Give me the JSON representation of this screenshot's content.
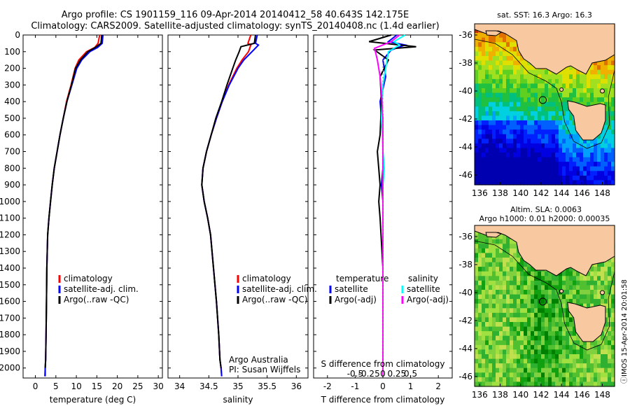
{
  "header": {
    "line1": "Argo profile: CS 1901159_116 09-Apr-2014 20140412_58 40.643S 142.175E",
    "line2": "Climatology: CARS2009. Satellite-adjusted climatology: synTS_20140408.nc (1.4d earlier)"
  },
  "chart_data": [
    {
      "type": "line",
      "xlabel": "temperature (deg C)",
      "xlim": [
        -3,
        31
      ],
      "xticks": [
        0,
        5,
        10,
        15,
        20,
        25,
        30
      ],
      "ylim": [
        2060,
        0
      ],
      "yticks": [
        0,
        100,
        200,
        300,
        400,
        500,
        600,
        700,
        800,
        900,
        1000,
        1100,
        1200,
        1300,
        1400,
        1500,
        1600,
        1700,
        1800,
        1900,
        2000
      ],
      "legend": [
        "climatology",
        "satellite-adj. clim.",
        "Argo(..raw -QC)"
      ],
      "series": [
        {
          "name": "climatology",
          "color": "#ff0000",
          "x": [
            15.7,
            15.3,
            14.5,
            12.5,
            10.6,
            9.7,
            8.7,
            7.6,
            6.8,
            6.0,
            5.3,
            4.6,
            4.1,
            3.7,
            3.3,
            3.0,
            2.8,
            2.7,
            2.6,
            2.5,
            2.4,
            2.3
          ],
          "y": [
            0,
            50,
            75,
            100,
            150,
            200,
            300,
            400,
            500,
            600,
            700,
            800,
            900,
            1000,
            1100,
            1200,
            1400,
            1600,
            1800,
            1950,
            2000,
            2050
          ]
        },
        {
          "name": "satellite-adj. clim.",
          "color": "#0000ff",
          "x": [
            16.5,
            16.3,
            15.2,
            13.3,
            11.3,
            10.1,
            8.9,
            7.7,
            6.8,
            6.0,
            5.3,
            4.6,
            4.1,
            3.7,
            3.3,
            3.0,
            2.8,
            2.7,
            2.6,
            2.5,
            2.4,
            2.4
          ],
          "y": [
            0,
            50,
            75,
            100,
            150,
            200,
            300,
            400,
            500,
            600,
            700,
            800,
            900,
            1000,
            1100,
            1200,
            1400,
            1600,
            1800,
            1950,
            2000,
            2050
          ]
        },
        {
          "name": "Argo(..raw -QC)",
          "color": "#000000",
          "x": [
            16.2,
            16.0,
            14.6,
            12.8,
            11.0,
            9.8,
            8.8,
            7.7,
            6.8,
            6.0,
            5.3,
            4.6,
            4.1,
            3.7,
            3.3,
            3.0,
            2.8,
            2.7,
            2.6,
            2.5,
            2.4
          ],
          "y": [
            0,
            50,
            75,
            100,
            150,
            200,
            300,
            400,
            500,
            600,
            700,
            800,
            900,
            1000,
            1100,
            1200,
            1400,
            1600,
            1800,
            1950,
            2000
          ]
        }
      ]
    },
    {
      "type": "line",
      "xlabel": "salinity",
      "xlim": [
        33.8,
        36.2
      ],
      "xticks": [
        34,
        34.5,
        35,
        35.5,
        36
      ],
      "ylim": [
        2060,
        0
      ],
      "legend": [
        "climatology",
        "satellite-adj. clim.",
        "Argo(..raw -QC)"
      ],
      "annotation": [
        "Argo Australia",
        "PI: Susan Wijffels"
      ],
      "series": [
        {
          "name": "climatology",
          "color": "#ff0000",
          "x": [
            35.22,
            35.17,
            35.22,
            35.18,
            35.07,
            34.98,
            34.84,
            34.73,
            34.63,
            34.54,
            34.46,
            34.4,
            34.38,
            34.42,
            34.48,
            34.53,
            34.58,
            34.63,
            34.67,
            34.69,
            34.71,
            34.72
          ],
          "y": [
            0,
            50,
            60,
            100,
            150,
            200,
            300,
            400,
            500,
            600,
            700,
            800,
            900,
            1000,
            1100,
            1200,
            1400,
            1600,
            1800,
            1950,
            2000,
            2050
          ]
        },
        {
          "name": "satellite-adj. clim.",
          "color": "#0000ff",
          "x": [
            35.33,
            35.3,
            35.35,
            35.24,
            35.1,
            35.0,
            34.85,
            34.73,
            34.63,
            34.54,
            34.46,
            34.4,
            34.38,
            34.42,
            34.48,
            34.53,
            34.58,
            34.63,
            34.67,
            34.69,
            34.71,
            34.72
          ],
          "y": [
            0,
            50,
            60,
            100,
            150,
            200,
            300,
            400,
            500,
            600,
            700,
            800,
            900,
            1000,
            1100,
            1200,
            1400,
            1600,
            1800,
            1950,
            2000,
            2050
          ]
        },
        {
          "name": "Argo(..raw -QC)",
          "color": "#000000",
          "x": [
            35.3,
            35.28,
            35.05,
            35.02,
            34.96,
            34.91,
            34.81,
            34.72,
            34.62,
            34.54,
            34.46,
            34.4,
            34.38,
            34.42,
            34.48,
            34.53,
            34.58,
            34.63,
            34.67,
            34.69,
            34.71
          ],
          "y": [
            0,
            50,
            70,
            100,
            150,
            200,
            300,
            400,
            500,
            600,
            700,
            800,
            900,
            1000,
            1100,
            1200,
            1400,
            1600,
            1800,
            1950,
            2000
          ]
        }
      ]
    },
    {
      "type": "line",
      "xlabel_bottom": "T difference from climatology",
      "xlabel_top": "S difference from climatology",
      "xlim": [
        -2.5,
        2.5
      ],
      "xticks": [
        -2,
        -1,
        0,
        1,
        2
      ],
      "s_ticks": [
        "-0.5",
        "-0.25",
        "0",
        "0.25",
        "0.5"
      ],
      "ylim": [
        2060,
        0
      ],
      "legend_temperature": {
        "title": "temperature",
        "items": [
          "satellite",
          "Argo(-adj)"
        ]
      },
      "legend_salinity": {
        "title": "salinity",
        "items": [
          "satellite",
          "Argo(-adj)"
        ]
      },
      "series": [
        {
          "name": "satellite",
          "color": "#0000ff",
          "x": [
            0.5,
            0.2,
            0.8,
            0.3,
            0.0,
            0.1,
            -0.1,
            0.0,
            0.0,
            -0.05,
            0.0,
            0.0,
            0.0,
            0.0,
            0.0,
            0.0,
            0.0,
            0.0
          ],
          "y": [
            0,
            40,
            60,
            90,
            150,
            250,
            400,
            600,
            800,
            900,
            1000,
            1200,
            1400,
            1600,
            1800,
            1900,
            2000,
            2050
          ]
        },
        {
          "name": "Argo(-adj)",
          "color": "#000000",
          "x": [
            0.3,
            -0.5,
            1.2,
            -0.3,
            0.2,
            -0.1,
            -0.05,
            -0.1,
            -0.2,
            -0.1,
            -0.15,
            -0.1,
            0.0,
            0.0,
            0.0,
            0.0,
            0.0
          ],
          "y": [
            0,
            40,
            70,
            90,
            150,
            250,
            400,
            600,
            700,
            900,
            1000,
            1100,
            1400,
            1600,
            1800,
            1950,
            2000
          ]
        },
        {
          "name": "satellite (salinity)",
          "color": "#00ffff",
          "x": [
            0.8,
            0.4,
            0.6,
            0.2,
            0.1,
            0.0,
            -0.05,
            0.0,
            0.05,
            0.0,
            0.0,
            0.0,
            0.0,
            0.0,
            0.0,
            0.0,
            0.0
          ],
          "y": [
            0,
            40,
            60,
            100,
            200,
            300,
            500,
            700,
            800,
            900,
            1100,
            1300,
            1500,
            1700,
            1900,
            2000,
            2050
          ]
        },
        {
          "name": "Argo(-adj) (salinity)",
          "color": "#ff00ff",
          "x": [
            0.6,
            0.3,
            -0.3,
            -0.2,
            -0.1,
            -0.05,
            0.0,
            0.0,
            0.0,
            0.0,
            0.0,
            0.0,
            0.0,
            0.0,
            0.0,
            0.0
          ],
          "y": [
            0,
            40,
            80,
            150,
            250,
            350,
            500,
            700,
            900,
            1100,
            1300,
            1500,
            1700,
            1900,
            2000,
            2050
          ]
        }
      ]
    },
    {
      "type": "heatmap",
      "title": "sat. SST: 16.3 Argo: 16.3",
      "xlim": [
        135.5,
        149.2
      ],
      "ylim": [
        -46.7,
        -35.2
      ],
      "xticks": [
        136,
        138,
        140,
        142,
        144,
        146,
        148
      ],
      "yticks": [
        -36,
        -38,
        -40,
        -42,
        -44,
        -46
      ],
      "argo_position": {
        "lon": 142.175,
        "lat": -40.643
      }
    },
    {
      "type": "heatmap",
      "title": "Altim. SLA: 0.0063",
      "subtitle": "Argo h1000: 0.01 h2000: 0.00035",
      "xlim": [
        135.5,
        149.2
      ],
      "ylim": [
        -46.7,
        -35.2
      ],
      "xticks": [
        136,
        138,
        140,
        142,
        144,
        146,
        148
      ],
      "yticks": [
        -36,
        -38,
        -40,
        -42,
        -44,
        -46
      ],
      "argo_position": {
        "lon": 142.175,
        "lat": -40.643
      }
    }
  ],
  "footer_stamp": "ⓘIMOS 15-Apr-2014 20:01:58"
}
